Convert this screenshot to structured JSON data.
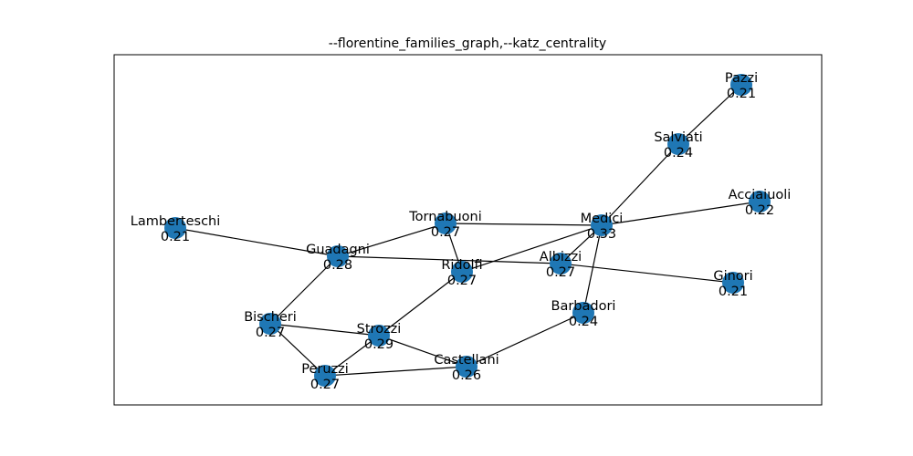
{
  "title": "--florentine_families_graph,--katz_centrality",
  "node_color": "#1f77b4",
  "edge_color": "#000000",
  "nodes": [
    {
      "id": "pazzi",
      "name": "Pazzi",
      "value": "0.21"
    },
    {
      "id": "salviati",
      "name": "Salviati",
      "value": "0.24"
    },
    {
      "id": "acciaiuoli",
      "name": "Acciaiuoli",
      "value": "0.22"
    },
    {
      "id": "medici",
      "name": "Medici",
      "value": "0.33"
    },
    {
      "id": "tornabuoni",
      "name": "Tornabuoni",
      "value": "0.27"
    },
    {
      "id": "lamberteschi",
      "name": "Lamberteschi",
      "value": "0.21"
    },
    {
      "id": "guadagni",
      "name": "Guadagni",
      "value": "0.28"
    },
    {
      "id": "ridolfi",
      "name": "Ridolfi",
      "value": "0.27"
    },
    {
      "id": "albizzi",
      "name": "Albizzi",
      "value": "0.27"
    },
    {
      "id": "ginori",
      "name": "Ginori",
      "value": "0.21"
    },
    {
      "id": "barbadori",
      "name": "Barbadori",
      "value": "0.24"
    },
    {
      "id": "bischeri",
      "name": "Bischeri",
      "value": "0.27"
    },
    {
      "id": "strozzi",
      "name": "Strozzi",
      "value": "0.29"
    },
    {
      "id": "castellani",
      "name": "Castellani",
      "value": "0.26"
    },
    {
      "id": "peruzzi",
      "name": "Peruzzi",
      "value": "0.27"
    }
  ],
  "edges": [
    [
      "pazzi",
      "salviati"
    ],
    [
      "salviati",
      "medici"
    ],
    [
      "acciaiuoli",
      "medici"
    ],
    [
      "medici",
      "tornabuoni"
    ],
    [
      "medici",
      "ridolfi"
    ],
    [
      "medici",
      "albizzi"
    ],
    [
      "medici",
      "barbadori"
    ],
    [
      "tornabuoni",
      "guadagni"
    ],
    [
      "tornabuoni",
      "ridolfi"
    ],
    [
      "lamberteschi",
      "guadagni"
    ],
    [
      "guadagni",
      "albizzi"
    ],
    [
      "guadagni",
      "bischeri"
    ],
    [
      "albizzi",
      "ginori"
    ],
    [
      "ridolfi",
      "strozzi"
    ],
    [
      "barbadori",
      "castellani"
    ],
    [
      "bischeri",
      "strozzi"
    ],
    [
      "bischeri",
      "peruzzi"
    ],
    [
      "strozzi",
      "castellani"
    ],
    [
      "strozzi",
      "peruzzi"
    ],
    [
      "castellani",
      "peruzzi"
    ]
  ]
}
